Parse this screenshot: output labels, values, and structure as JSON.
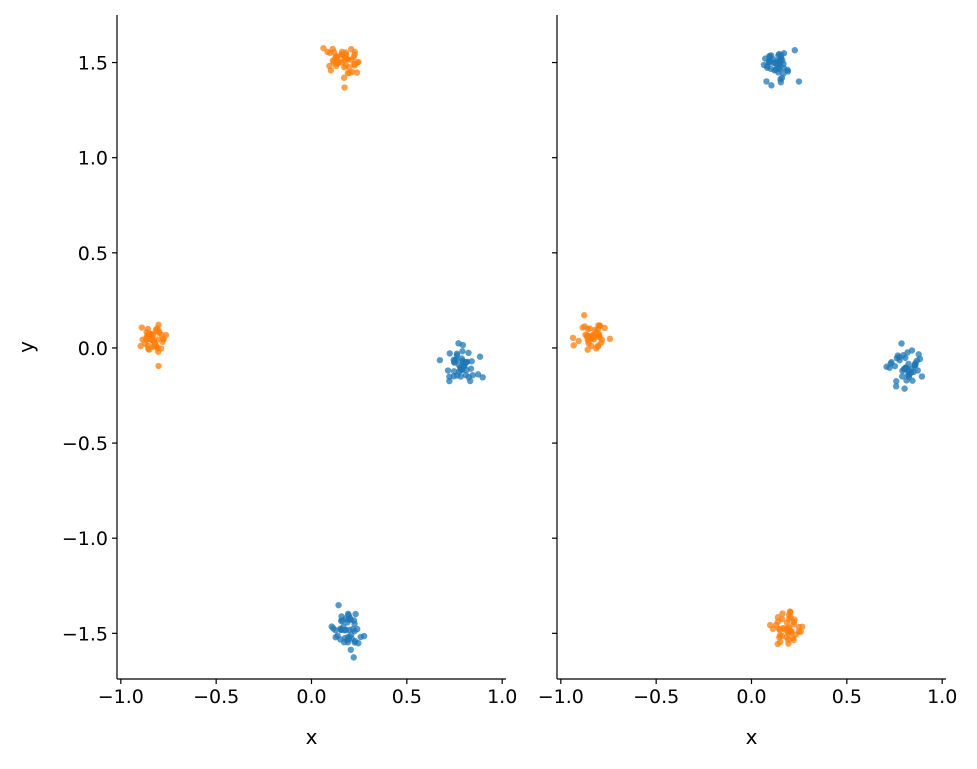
{
  "chart_data": {
    "type": "scatter",
    "sharey": true,
    "colors": {
      "blue": "#1f77b4",
      "orange": "#ff7f0e",
      "axis": "#000000"
    },
    "x_ticks": [
      "−1.0",
      "−0.5",
      "0.0",
      "0.5",
      "1.0"
    ],
    "x_tick_values": [
      -1.0,
      -0.5,
      0.0,
      0.5,
      1.0
    ],
    "y_ticks": [
      "1.5",
      "1.0",
      "0.5",
      "0.0",
      "−0.5",
      "−1.0",
      "−1.5"
    ],
    "y_tick_values": [
      1.5,
      1.0,
      0.5,
      0.0,
      -0.5,
      -1.0,
      -1.5
    ],
    "xlim": [
      -1.02,
      1.02
    ],
    "ylim": [
      -1.74,
      1.75
    ],
    "grid": false,
    "legend": "none",
    "panels": [
      {
        "xlabel": "x",
        "ylabel": "y",
        "clusters": [
          {
            "color": "orange",
            "center": [
              0.15,
              1.5
            ],
            "spread": [
              0.045,
              0.045
            ],
            "count": 45
          },
          {
            "color": "orange",
            "center": [
              -0.83,
              0.05
            ],
            "spread": [
              0.03,
              0.04
            ],
            "count": 45
          },
          {
            "color": "blue",
            "center": [
              0.78,
              -0.1
            ],
            "spread": [
              0.04,
              0.04
            ],
            "count": 45
          },
          {
            "color": "blue",
            "center": [
              0.19,
              -1.48
            ],
            "spread": [
              0.045,
              0.05
            ],
            "count": 45
          }
        ]
      },
      {
        "xlabel": "x",
        "ylabel": "",
        "clusters": [
          {
            "color": "blue",
            "center": [
              0.14,
              1.49
            ],
            "spread": [
              0.045,
              0.04
            ],
            "count": 45
          },
          {
            "color": "orange",
            "center": [
              -0.83,
              0.07
            ],
            "spread": [
              0.035,
              0.04
            ],
            "count": 45
          },
          {
            "color": "blue",
            "center": [
              0.8,
              -0.1
            ],
            "spread": [
              0.045,
              0.045
            ],
            "count": 45
          },
          {
            "color": "orange",
            "center": [
              0.19,
              -1.48
            ],
            "spread": [
              0.035,
              0.04
            ],
            "count": 45
          }
        ]
      }
    ]
  }
}
